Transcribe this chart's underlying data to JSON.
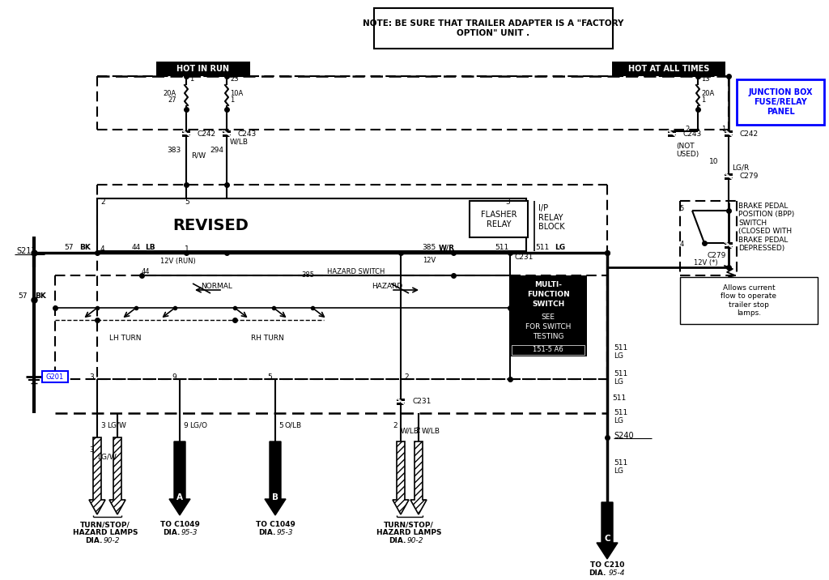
{
  "bg_color": "#ffffff",
  "note_text": "NOTE: BE SURE THAT TRAILER ADAPTER IS A \"FACTORY\nOPTION\" UNIT .",
  "hot_in_run_text": "HOT IN RUN",
  "hot_at_all_times_text": "HOT AT ALL TIMES",
  "junction_box_text": "JUNCTION BOX\nFUSE/RELAY\nPANEL",
  "revised_text": "REVISED",
  "flasher_relay_text": "FLASHER\nRELAY",
  "ip_relay_block_text": "I/P\nRELAY\nBLOCK",
  "multi_function_text": "MULTI-\nFUNCTION\nSWITCH\nSEE\nFOR SWITCH\nTESTING",
  "bpp_switch_text": "BRAKE PEDAL\nPOSITION (BPP)\nSWITCH\n(CLOSED WITH\nBRAKE PEDAL\nDEPRESSED)",
  "allows_current_text": "Allows current\nflow to operate\ntrailer stop\nlamps.",
  "blue_box_color": "#0000ff"
}
